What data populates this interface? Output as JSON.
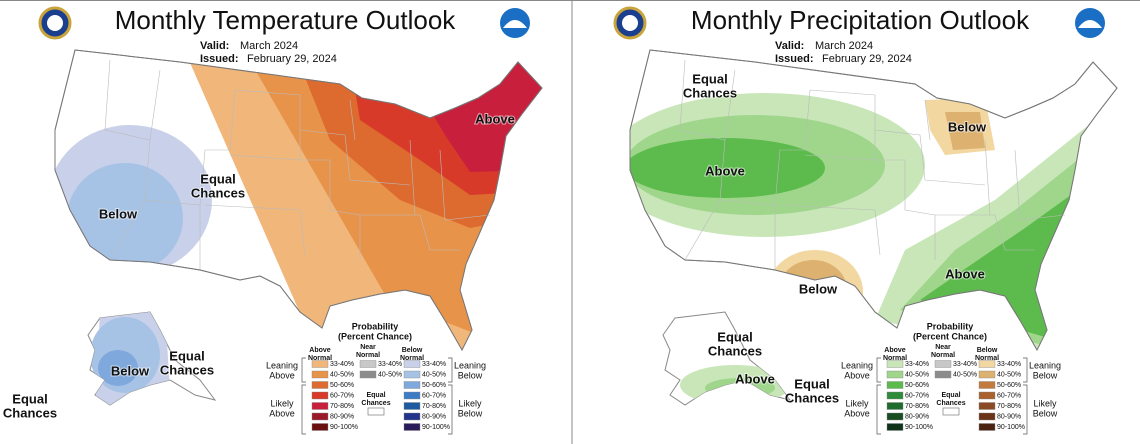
{
  "panels": [
    {
      "title": "Monthly Temperature Outlook",
      "valid_label": "Valid:",
      "valid": "March 2024",
      "issued_label": "Issued:",
      "issued": "February 29, 2024",
      "regions": [
        [
          "Above"
        ],
        [
          "Equal",
          "Chances"
        ],
        [
          "Below"
        ],
        [
          "Below"
        ],
        [
          "Equal",
          "Chances"
        ],
        [
          "Equal",
          "Chances"
        ]
      ],
      "legend": {
        "title": [
          "Probability",
          "(Percent Chance)"
        ],
        "columns": [
          {
            "header": [
              "Above",
              "Normal"
            ],
            "items": [
              {
                "label": "33-40%",
                "color": "#f0b67a"
              },
              {
                "label": "40-50%",
                "color": "#e8934a"
              },
              {
                "label": "50-60%",
                "color": "#dd6a2e"
              },
              {
                "label": "60-70%",
                "color": "#d83a2a"
              },
              {
                "label": "70-80%",
                "color": "#c8203c"
              },
              {
                "label": "80-90%",
                "color": "#9a1a2a"
              },
              {
                "label": "90-100%",
                "color": "#6a1010"
              }
            ]
          },
          {
            "header": [
              "Near",
              "Normal"
            ],
            "items": [
              {
                "label": "33-40%",
                "color": "#c8c8c8"
              },
              {
                "label": "40-50%",
                "color": "#8c8c8c"
              }
            ]
          },
          {
            "header": [
              "Below",
              "Normal"
            ],
            "items": [
              {
                "label": "33-40%",
                "color": "#c9d1ea"
              },
              {
                "label": "40-50%",
                "color": "#a6c3e6"
              },
              {
                "label": "50-60%",
                "color": "#7fa8dc"
              },
              {
                "label": "60-70%",
                "color": "#3d7cc4"
              },
              {
                "label": "70-80%",
                "color": "#1e5aa0"
              },
              {
                "label": "80-90%",
                "color": "#23328a"
              },
              {
                "label": "90-100%",
                "color": "#2a1c5a"
              }
            ]
          }
        ],
        "equal": [
          "Equal",
          "Chances"
        ],
        "left": [
          [
            "Leaning",
            "Above"
          ],
          [
            "Likely",
            "Above"
          ]
        ],
        "right": [
          [
            "Leaning",
            "Below"
          ],
          [
            "Likely",
            "Below"
          ]
        ]
      }
    },
    {
      "title": "Monthly Precipitation Outlook",
      "valid_label": "Valid:",
      "valid": "March 2024",
      "issued_label": "Issued:",
      "issued": "February 29, 2024",
      "regions": [
        [
          "Equal",
          "Chances"
        ],
        [
          "Above"
        ],
        [
          "Below"
        ],
        [
          "Below"
        ],
        [
          "Above"
        ],
        [
          "Equal",
          "Chances"
        ],
        [
          "Above"
        ],
        [
          "Equal",
          "Chances"
        ]
      ],
      "legend": {
        "title": [
          "Probability",
          "(Percent Chance)"
        ],
        "columns": [
          {
            "header": [
              "Above",
              "Normal"
            ],
            "items": [
              {
                "label": "33-40%",
                "color": "#c8e6b8"
              },
              {
                "label": "40-50%",
                "color": "#9fd68b"
              },
              {
                "label": "50-60%",
                "color": "#5dbb4d"
              },
              {
                "label": "60-70%",
                "color": "#2e8b3a"
              },
              {
                "label": "70-80%",
                "color": "#1e6b2e"
              },
              {
                "label": "80-90%",
                "color": "#1b4d23"
              },
              {
                "label": "90-100%",
                "color": "#0f3318"
              }
            ]
          },
          {
            "header": [
              "Near",
              "Normal"
            ],
            "items": [
              {
                "label": "33-40%",
                "color": "#c8c8c8"
              },
              {
                "label": "40-50%",
                "color": "#8c8c8c"
              }
            ]
          },
          {
            "header": [
              "Below",
              "Normal"
            ],
            "items": [
              {
                "label": "33-40%",
                "color": "#f2d7a0"
              },
              {
                "label": "40-50%",
                "color": "#ddb170"
              },
              {
                "label": "50-60%",
                "color": "#c27a3d"
              },
              {
                "label": "60-70%",
                "color": "#a9622f"
              },
              {
                "label": "70-80%",
                "color": "#8a4a24"
              },
              {
                "label": "80-90%",
                "color": "#6b3418"
              },
              {
                "label": "90-100%",
                "color": "#4a2410"
              }
            ]
          }
        ],
        "equal": [
          "Equal",
          "Chances"
        ],
        "left": [
          [
            "Leaning",
            "Above"
          ],
          [
            "Likely",
            "Above"
          ]
        ],
        "right": [
          [
            "Leaning",
            "Below"
          ],
          [
            "Likely",
            "Below"
          ]
        ]
      }
    }
  ]
}
